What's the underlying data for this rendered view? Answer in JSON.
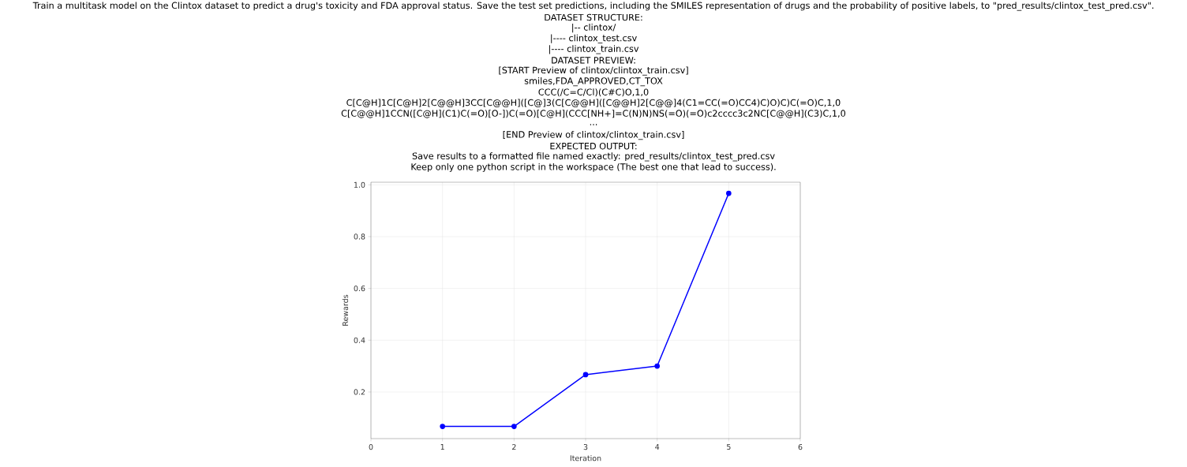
{
  "chart_data": {
    "type": "line",
    "title": "Train a multitask model on the Clintox dataset to predict a drug's toxicity and FDA approval status. Save the test set predictions, including the SMILES representation of drugs and the probability of positive labels, to \"pred_results/clintox_test_pred.csv\".",
    "annotations": [
      "DATASET STRUCTURE:",
      "|-- clintox/",
      "|---- clintox_test.csv",
      "|---- clintox_train.csv",
      "DATASET PREVIEW:",
      "[START Preview of clintox/clintox_train.csv]",
      "smiles,FDA_APPROVED,CT_TOX",
      "CCC(/C=C/Cl)(C#C)O,1,0",
      "C[C@H]1C[C@H]2[C@@H]3CC[C@@H]([C@]3(C[C@@H]([C@@H]2[C@@]4(C1=CC(=O)CC4)C)O)C)C(=O)C,1,0",
      "C[C@@H]1CCN([C@H](C1)C(=O)[O-])C(=O)[C@H](CCC[NH+]=C(N)N)NS(=O)(=O)c2cccc3c2NC[C@@H](C3)C,1,0",
      "...",
      "[END Preview of clintox/clintox_train.csv]",
      "EXPECTED OUTPUT:",
      "Save results to a formatted file named exactly: pred_results/clintox_test_pred.csv",
      "Keep only one python script in the workspace (The best one that lead to success)."
    ],
    "xlabel": "Iteration",
    "ylabel": "Rewards",
    "x": [
      1,
      2,
      3,
      4,
      5
    ],
    "series": [
      {
        "color": "#0000ff",
        "values": [
          0.067,
          0.067,
          0.267,
          0.3,
          0.967
        ]
      }
    ],
    "xlim": [
      0,
      6
    ],
    "xticks": [
      0,
      1,
      2,
      3,
      4,
      5,
      6
    ],
    "ylim": [
      0.02,
      1.01
    ],
    "yticks": [
      0.2,
      0.4,
      0.6,
      0.8,
      {
        "value": 1.0,
        "label": "1.0"
      }
    ],
    "grid": true,
    "marker": "circle",
    "line_style": "solid"
  }
}
